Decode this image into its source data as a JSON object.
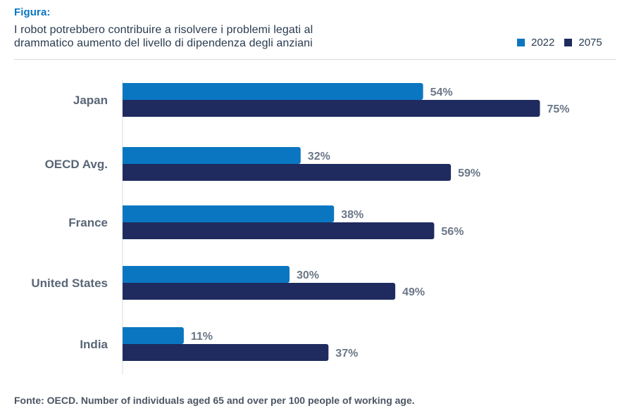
{
  "header": {
    "kicker": "Figura:",
    "title_line1": "I robot potrebbero contribuire a risolvere i problemi legati al",
    "title_line2": "drammatico aumento del livello di dipendenza degli anziani"
  },
  "legend": [
    {
      "label": "2022",
      "color": "#0a76c1"
    },
    {
      "label": "2075",
      "color": "#1f2b5e"
    }
  ],
  "chart_data": {
    "type": "bar",
    "orientation": "horizontal",
    "categories": [
      "Japan",
      "OECD Avg.",
      "France",
      "United States",
      "India"
    ],
    "series": [
      {
        "name": "2022",
        "values": [
          54,
          32,
          38,
          30,
          11
        ],
        "color": "#0a76c1"
      },
      {
        "name": "2075",
        "values": [
          75,
          59,
          56,
          49,
          37
        ],
        "color": "#1f2b5e"
      }
    ],
    "value_suffix": "%",
    "xlim": [
      0,
      100
    ],
    "title": "I robot potrebbero contribuire a risolvere i problemi legati al drammatico aumento del livello di dipendenza degli anziani",
    "xlabel": "",
    "ylabel": "",
    "grid": false,
    "legend_position": "top-right",
    "label_color": "#6b7787",
    "category_label_color": "#5a6676"
  },
  "footer": {
    "source": "Fonte: OECD. Number of individuals aged 65 and over per 100 people of working age."
  }
}
